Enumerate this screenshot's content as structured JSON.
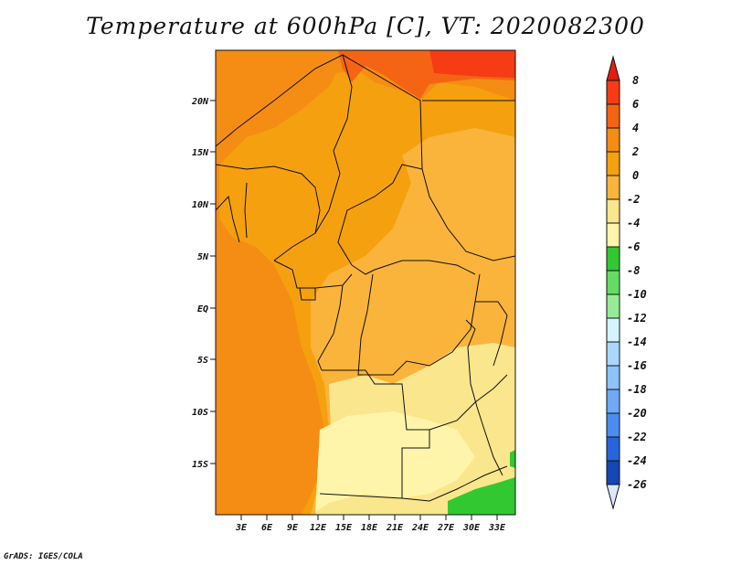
{
  "title": "Temperature at 600hPa [C], VT: 2020082300",
  "credit": "GrADS: IGES/COLA",
  "lon_ticks": [
    "3E",
    "6E",
    "9E",
    "12E",
    "15E",
    "18E",
    "21E",
    "24E",
    "27E",
    "30E",
    "33E"
  ],
  "lat_ticks": [
    "20N",
    "15N",
    "10N",
    "5N",
    "EQ",
    "5S",
    "10S",
    "15S"
  ],
  "colorbar": {
    "labels": [
      "8",
      "6",
      "4",
      "2",
      "0",
      "-2",
      "-4",
      "-6",
      "-8",
      "-10",
      "-12",
      "-14",
      "-16",
      "-18",
      "-20",
      "-22",
      "-24",
      "-26"
    ],
    "colors": [
      "#f53c14",
      "#f56414",
      "#f58c14",
      "#f5a00f",
      "#fab43c",
      "#fae68c",
      "#fff5aa",
      "#32c832",
      "#64dc64",
      "#96ec96",
      "#d2f5ff",
      "#aad7ff",
      "#8cc3fa",
      "#6eaaf5",
      "#4b8cf0",
      "#2864dc",
      "#1446b4",
      "#0f1e8c"
    ],
    "top_color": "#e11e14",
    "bottom_color": "#dce6ff"
  },
  "chart_data": {
    "type": "heatmap",
    "title": "Temperature at 600hPa [C], VT: 2020082300",
    "variable": "Temperature at 600hPa",
    "units": "C",
    "valid_time": "2020082300",
    "lon_range": [
      0,
      35
    ],
    "lat_range": [
      -20,
      24
    ],
    "levels": [
      -26,
      -24,
      -22,
      -20,
      -18,
      -16,
      -14,
      -12,
      -10,
      -8,
      -6,
      -4,
      -2,
      0,
      2,
      4,
      6,
      8
    ]
  }
}
